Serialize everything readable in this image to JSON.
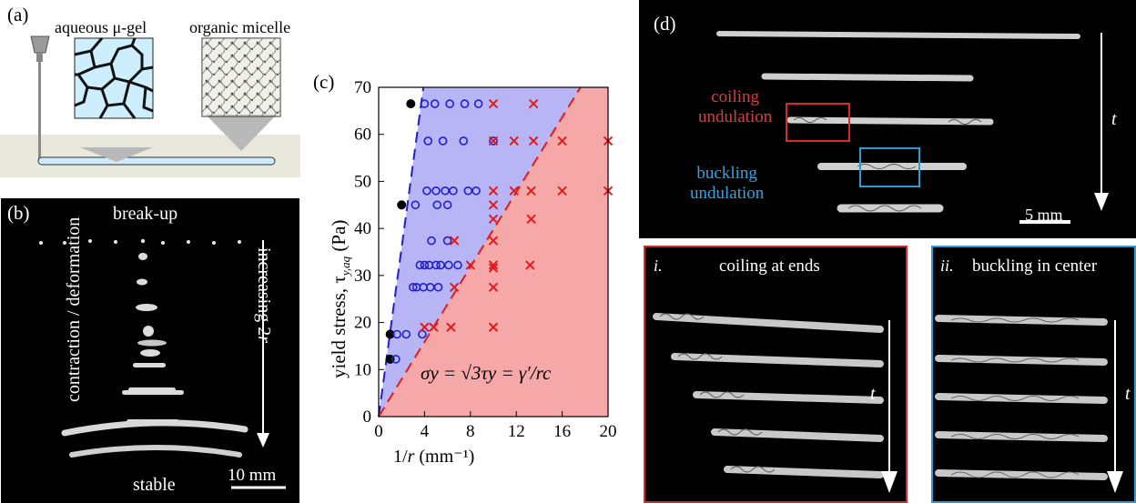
{
  "panel_a": {
    "letter": "(a)",
    "label_left": "aqueous μ-gel",
    "label_right": "organic micelle"
  },
  "panel_b": {
    "letter": "(b)",
    "top_label": "break-up",
    "side_label": "contraction / deformation",
    "arrow_label_prefix": "increasing 2",
    "arrow_label_var": "r",
    "bottom_label": "stable",
    "scalebar_label": "10 mm"
  },
  "panel_c": {
    "letter": "(c)",
    "ylabel_text": "yield stress, τ",
    "ylabel_sub": "y,aq",
    "ylabel_unit": "(Pa)",
    "xlabel_prefix": "1/",
    "xlabel_var": "r",
    "xlabel_unit": "(mm⁻¹)",
    "equation": "σy = √3τy = γ′/rc"
  },
  "panel_d": {
    "letter": "(d)",
    "coiling_label_1": "coiling",
    "coiling_label_2": "undulation",
    "buckling_label_1": "buckling",
    "buckling_label_2": "undulation",
    "time_label": "t",
    "scalebar_label": "5 mm",
    "inset_i_num": "i.",
    "inset_i_title": "coiling at ends",
    "inset_ii_num": "ii.",
    "inset_ii_title": "buckling in center",
    "inset_time_label": "t"
  },
  "colors": {
    "stable_region": "#b7b5f5",
    "unstable_region": "#f6a8a8",
    "blue_marker": "#1f1fcf",
    "red_marker": "#e01b1b",
    "coiling_box": "#d72a2a",
    "buckling_box": "#2a9bd7"
  },
  "chart_data": {
    "type": "scatter",
    "xlabel": "1/r (mm⁻¹)",
    "ylabel": "yield stress, τy,aq (Pa)",
    "xlim": [
      0,
      20
    ],
    "ylim": [
      0,
      70
    ],
    "xticks": [
      0,
      4,
      8,
      12,
      16,
      20
    ],
    "yticks": [
      0,
      10,
      20,
      30,
      40,
      50,
      60,
      70
    ],
    "annotation": "σy = √3τy = γ′/rc",
    "boundaries": [
      {
        "style": "dashed",
        "color": "blue",
        "points": [
          [
            0,
            0
          ],
          [
            3.9,
            70
          ]
        ]
      },
      {
        "style": "dashed",
        "color": "red",
        "points": [
          [
            0,
            0
          ],
          [
            17.6,
            70
          ]
        ]
      }
    ],
    "series": [
      {
        "marker": "filled-circle",
        "color": "black",
        "points": [
          [
            1.0,
            12.2
          ],
          [
            1.0,
            17.5
          ],
          [
            2.0,
            45
          ],
          [
            2.8,
            66.5
          ]
        ]
      },
      {
        "marker": "open-circle",
        "color": "blue",
        "points": [
          [
            1.5,
            12.2
          ],
          [
            1.6,
            17.5
          ],
          [
            2.4,
            17.5
          ],
          [
            3.0,
            27.5
          ],
          [
            3.2,
            45
          ],
          [
            3.3,
            27.5
          ],
          [
            3.6,
            32.2
          ],
          [
            3.8,
            17.5
          ],
          [
            3.9,
            27.5
          ],
          [
            4.0,
            32.2
          ],
          [
            4.0,
            66.5
          ],
          [
            4.2,
            48
          ],
          [
            4.3,
            58.6
          ],
          [
            4.4,
            32.2
          ],
          [
            4.5,
            27.5
          ],
          [
            4.6,
            37.4
          ],
          [
            4.9,
            66.5
          ],
          [
            5.0,
            32.2
          ],
          [
            5.0,
            48
          ],
          [
            5.1,
            45
          ],
          [
            5.2,
            27.5
          ],
          [
            5.4,
            32.2
          ],
          [
            5.6,
            58.6
          ],
          [
            5.8,
            48
          ],
          [
            6.0,
            37.4
          ],
          [
            6.0,
            45
          ],
          [
            6.1,
            32.2
          ],
          [
            6.2,
            66.5
          ],
          [
            6.5,
            48
          ],
          [
            6.9,
            32.2
          ],
          [
            7.4,
            58.6
          ],
          [
            7.5,
            66.5
          ],
          [
            7.8,
            48
          ],
          [
            8.5,
            48
          ],
          [
            8.7,
            66.5
          ],
          [
            10.0,
            58.6
          ]
        ]
      },
      {
        "marker": "x",
        "color": "red",
        "points": [
          [
            4.0,
            19.0
          ],
          [
            4.8,
            19.0
          ],
          [
            6.3,
            19.0
          ],
          [
            6.6,
            37.4
          ],
          [
            6.6,
            27.5
          ],
          [
            8.0,
            32.2
          ],
          [
            10.0,
            66.5
          ],
          [
            10.0,
            58.6
          ],
          [
            10.0,
            48
          ],
          [
            10.0,
            45
          ],
          [
            10.0,
            42
          ],
          [
            10.0,
            37.4
          ],
          [
            10.0,
            32.2
          ],
          [
            10.0,
            31.6
          ],
          [
            10.0,
            27.5
          ],
          [
            10.0,
            19.0
          ],
          [
            11.8,
            48
          ],
          [
            11.8,
            58.6
          ],
          [
            13.2,
            32.2
          ],
          [
            13.3,
            42
          ],
          [
            13.3,
            48
          ],
          [
            13.5,
            58.6
          ],
          [
            13.5,
            66.5
          ],
          [
            16.0,
            48
          ],
          [
            16.0,
            58.6
          ],
          [
            20.0,
            58.6
          ],
          [
            20.0,
            48
          ]
        ]
      }
    ]
  }
}
